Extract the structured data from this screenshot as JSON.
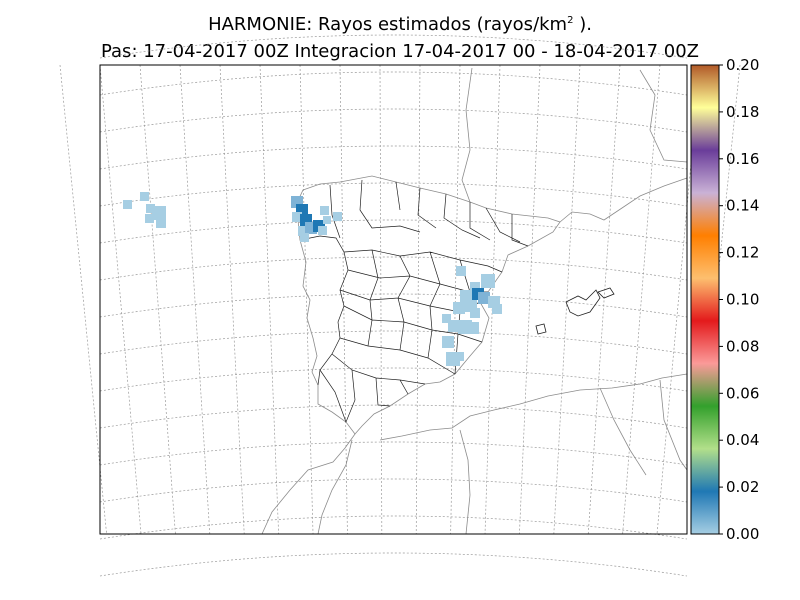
{
  "title": {
    "line1_prefix": "HARMONIE: Rayos estimados  (rayos/km",
    "line1_sup": "2",
    "line1_suffix": " ).",
    "line2": "Pas: 17-04-2017 00Z Integracion 17-04-2017 00 - 18-04-2017 00Z"
  },
  "colorbar": {
    "ticks": [
      "0.00",
      "0.02",
      "0.04",
      "0.06",
      "0.08",
      "0.10",
      "0.12",
      "0.14",
      "0.16",
      "0.18",
      "0.20"
    ],
    "range": [
      0.0,
      0.2
    ],
    "colors": [
      "#a6cee3",
      "#1f78b4",
      "#b2df8a",
      "#33a02c",
      "#fb9a99",
      "#e31a1c",
      "#fdbf6f",
      "#ff7f00",
      "#cab2d6",
      "#6a3d9a",
      "#ffff99",
      "#b15928"
    ]
  },
  "map": {
    "projection": "conic",
    "graticule": true,
    "lightning_regions": [
      "Atlantic west of Galicia",
      "Galicia",
      "Valencia / Teruel / Cuenca"
    ]
  }
}
